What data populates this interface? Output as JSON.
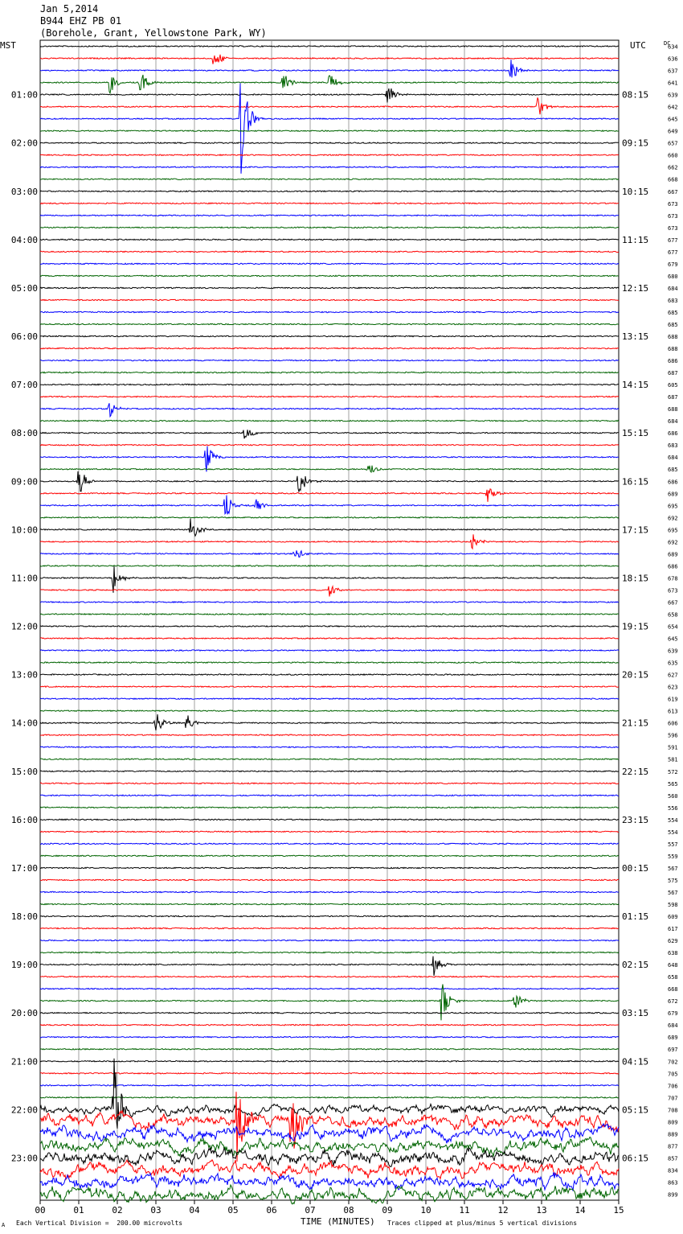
{
  "header": {
    "date": "Jan 5,2014",
    "station": "B944 EHZ PB 01",
    "location": "(Borehole, Grant, Yellowstone Park, WY)"
  },
  "left_axis_label": "MST",
  "right_axis_label": "UTC",
  "dc_label": "DC",
  "footer": {
    "scale_note": "Each Vertical Division =  200.00 microvolts",
    "xlabel": "TIME (MINUTES)",
    "clip_note": "Traces clipped at plus/minus 5 vertical divisions",
    "corner_mark": "A"
  },
  "chart_data": {
    "type": "line",
    "title": "",
    "xlabel": "TIME (MINUTES)",
    "xlim": [
      0,
      15
    ],
    "x_ticks": [
      "00",
      "01",
      "02",
      "03",
      "04",
      "05",
      "06",
      "07",
      "08",
      "09",
      "10",
      "11",
      "12",
      "13",
      "14",
      "15"
    ],
    "row_count": 96,
    "trace_colors": [
      "#000000",
      "#ff0000",
      "#0000ff",
      "#006400"
    ],
    "left_time_labels": [
      "",
      "",
      "",
      "",
      "01:00",
      "",
      "",
      "",
      "02:00",
      "",
      "",
      "",
      "03:00",
      "",
      "",
      "",
      "04:00",
      "",
      "",
      "",
      "05:00",
      "",
      "",
      "",
      "06:00",
      "",
      "",
      "",
      "07:00",
      "",
      "",
      "",
      "08:00",
      "",
      "",
      "",
      "09:00",
      "",
      "",
      "",
      "10:00",
      "",
      "",
      "",
      "11:00",
      "",
      "",
      "",
      "12:00",
      "",
      "",
      "",
      "13:00",
      "",
      "",
      "",
      "14:00",
      "",
      "",
      "",
      "15:00",
      "",
      "",
      "",
      "16:00",
      "",
      "",
      "",
      "17:00",
      "",
      "",
      "",
      "18:00",
      "",
      "",
      "",
      "19:00",
      "",
      "",
      "",
      "20:00",
      "",
      "",
      "",
      "21:00",
      "",
      "",
      "",
      "22:00",
      "",
      "",
      "",
      "23:00",
      "",
      "",
      ""
    ],
    "right_time_labels": [
      "",
      "",
      "",
      "",
      "08:15",
      "",
      "",
      "",
      "09:15",
      "",
      "",
      "",
      "10:15",
      "",
      "",
      "",
      "11:15",
      "",
      "",
      "",
      "12:15",
      "",
      "",
      "",
      "13:15",
      "",
      "",
      "",
      "14:15",
      "",
      "",
      "",
      "15:15",
      "",
      "",
      "",
      "16:15",
      "",
      "",
      "",
      "17:15",
      "",
      "",
      "",
      "18:15",
      "",
      "",
      "",
      "19:15",
      "",
      "",
      "",
      "20:15",
      "",
      "",
      "",
      "21:15",
      "",
      "",
      "",
      "22:15",
      "",
      "",
      "",
      "23:15",
      "",
      "",
      "",
      "00:15",
      "",
      "",
      "",
      "01:15",
      "",
      "",
      "",
      "02:15",
      "",
      "",
      "",
      "03:15",
      "",
      "",
      "",
      "04:15",
      "",
      "",
      "",
      "05:15",
      "",
      "",
      "",
      "06:15",
      "",
      "",
      ""
    ],
    "dc_offsets": [
      634,
      636,
      637,
      641,
      639,
      642,
      645,
      649,
      657,
      660,
      662,
      668,
      667,
      673,
      673,
      673,
      677,
      677,
      679,
      680,
      684,
      683,
      685,
      685,
      688,
      688,
      686,
      687,
      605,
      687,
      688,
      684,
      686,
      683,
      684,
      685,
      686,
      689,
      695,
      692,
      695,
      692,
      689,
      686,
      678,
      673,
      667,
      658,
      654,
      645,
      639,
      635,
      627,
      623,
      619,
      613,
      606,
      596,
      591,
      581,
      572,
      565,
      560,
      556,
      554,
      554,
      557,
      559,
      567,
      575,
      567,
      598,
      609,
      617,
      629,
      638,
      648,
      658,
      668,
      672,
      679,
      684,
      689,
      697,
      702,
      705,
      706,
      707,
      708,
      809,
      889,
      877,
      857,
      834,
      863,
      899
    ],
    "noise_levels": [
      1,
      1,
      1,
      1,
      1,
      1,
      1,
      1,
      1,
      1,
      1,
      1,
      1,
      1,
      1,
      1,
      1,
      1,
      1,
      1,
      1,
      1,
      1,
      1,
      1,
      1,
      1,
      1,
      1,
      1,
      1,
      1,
      1,
      1,
      1,
      1,
      1,
      1,
      1,
      1,
      1,
      1,
      1,
      1,
      1,
      1,
      1,
      1,
      1,
      1,
      1,
      1,
      1,
      1,
      1,
      1,
      1,
      1,
      1,
      1,
      1,
      1,
      1,
      1,
      1,
      1,
      1,
      1,
      1,
      1,
      1,
      1,
      1,
      1,
      1,
      1,
      1,
      1,
      1,
      1,
      1,
      1,
      1,
      1,
      1,
      1,
      1,
      1,
      2,
      3,
      3,
      3,
      3,
      3,
      3,
      3
    ],
    "events": [
      {
        "row": 1,
        "minute": 4.5,
        "amplitude": 1.2
      },
      {
        "row": 2,
        "minute": 12.2,
        "amplitude": 1.0
      },
      {
        "row": 3,
        "minute": 1.8,
        "amplitude": 1.0
      },
      {
        "row": 3,
        "minute": 2.6,
        "amplitude": 1.3
      },
      {
        "row": 3,
        "minute": 6.3,
        "amplitude": 1.0
      },
      {
        "row": 3,
        "minute": 7.5,
        "amplitude": 1.0
      },
      {
        "row": 4,
        "minute": 9.0,
        "amplitude": 1.0
      },
      {
        "row": 5,
        "minute": 12.9,
        "amplitude": 1.2
      },
      {
        "row": 6,
        "minute": 5.2,
        "amplitude": 5.0
      },
      {
        "row": 30,
        "minute": 1.8,
        "amplitude": 0.8
      },
      {
        "row": 32,
        "minute": 5.3,
        "amplitude": 0.8
      },
      {
        "row": 34,
        "minute": 4.3,
        "amplitude": 1.5
      },
      {
        "row": 35,
        "minute": 8.5,
        "amplitude": 0.8
      },
      {
        "row": 36,
        "minute": 1.0,
        "amplitude": 1.5
      },
      {
        "row": 36,
        "minute": 6.7,
        "amplitude": 1.5
      },
      {
        "row": 37,
        "minute": 11.6,
        "amplitude": 0.8
      },
      {
        "row": 38,
        "minute": 4.8,
        "amplitude": 1.2
      },
      {
        "row": 38,
        "minute": 5.6,
        "amplitude": 0.8
      },
      {
        "row": 40,
        "minute": 3.9,
        "amplitude": 1.5
      },
      {
        "row": 41,
        "minute": 11.2,
        "amplitude": 0.8
      },
      {
        "row": 42,
        "minute": 6.6,
        "amplitude": 0.8
      },
      {
        "row": 44,
        "minute": 1.9,
        "amplitude": 1.5
      },
      {
        "row": 45,
        "minute": 7.5,
        "amplitude": 0.6
      },
      {
        "row": 56,
        "minute": 3.0,
        "amplitude": 1.0
      },
      {
        "row": 56,
        "minute": 3.8,
        "amplitude": 1.0
      },
      {
        "row": 76,
        "minute": 10.2,
        "amplitude": 1.0
      },
      {
        "row": 79,
        "minute": 10.4,
        "amplitude": 2.0
      },
      {
        "row": 79,
        "minute": 12.3,
        "amplitude": 0.8
      },
      {
        "row": 88,
        "minute": 1.9,
        "amplitude": 5.0
      },
      {
        "row": 89,
        "minute": 5.1,
        "amplitude": 5.0
      },
      {
        "row": 89,
        "minute": 6.5,
        "amplitude": 4.0
      }
    ]
  }
}
